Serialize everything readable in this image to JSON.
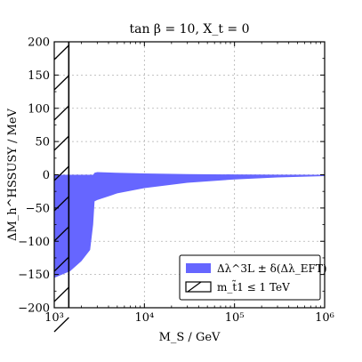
{
  "chart_data": {
    "type": "area",
    "title": "tan β = 10, X_t = 0",
    "xlabel": "M_S / GeV",
    "ylabel": "ΔM_h^HSSUSY / MeV",
    "xscale": "log",
    "xlim": [
      1000,
      1000000
    ],
    "ylim": [
      -200,
      200
    ],
    "xticks": [
      {
        "value": 1000,
        "label": "10³"
      },
      {
        "value": 10000,
        "label": "10⁴"
      },
      {
        "value": 100000,
        "label": "10⁵"
      },
      {
        "value": 1000000,
        "label": "10⁶"
      }
    ],
    "yticks": [
      {
        "value": 200,
        "label": "200"
      },
      {
        "value": 150,
        "label": "150"
      },
      {
        "value": 100,
        "label": "100"
      },
      {
        "value": 50,
        "label": "50"
      },
      {
        "value": 0,
        "label": "0"
      },
      {
        "value": -50,
        "label": "−50"
      },
      {
        "value": -100,
        "label": "−100"
      },
      {
        "value": -150,
        "label": "−150"
      },
      {
        "value": -200,
        "label": "−200"
      }
    ],
    "grid": true,
    "legend_position": "bottom-right",
    "band": {
      "name": "Δλ^3L ± δ(Δλ_EFT)",
      "color": "#6666ff",
      "x": [
        1000,
        1500,
        2000,
        2500,
        2700,
        2800,
        3000,
        5000,
        10000,
        30000,
        100000,
        300000,
        1000000
      ],
      "upper": [
        0,
        0,
        0,
        0,
        0,
        3,
        4,
        3,
        2,
        1,
        0.5,
        0.2,
        0
      ],
      "lower": [
        -155,
        -145,
        -130,
        -113,
        -75,
        -40,
        -38,
        -28,
        -20,
        -12,
        -7,
        -4,
        -2
      ]
    },
    "excluded_region": {
      "name": "m_t̃1 ≤ 1 TeV",
      "x_range": [
        1000,
        1450
      ],
      "pattern": "hatched"
    }
  }
}
